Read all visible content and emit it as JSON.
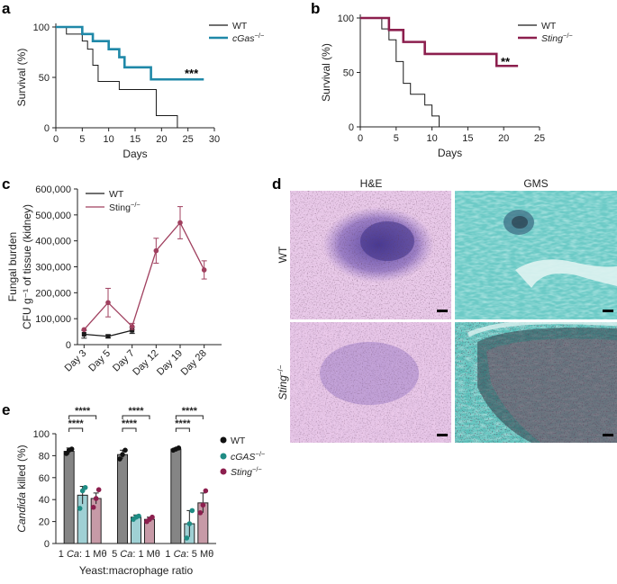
{
  "panels": {
    "a": {
      "letter": "a",
      "legend": [
        {
          "label": "WT",
          "color": "#1a1a1a"
        },
        {
          "label": "cGas",
          "sup": "−/−",
          "color": "#1f88a8"
        }
      ],
      "significance": "***"
    },
    "b": {
      "letter": "b",
      "legend": [
        {
          "label": "WT",
          "color": "#1a1a1a"
        },
        {
          "label": "Sting",
          "sup": "−/−",
          "color": "#8c1f4e"
        }
      ],
      "significance": "**"
    },
    "c": {
      "letter": "c",
      "legend": [
        {
          "label": "WT",
          "color": "#1a1a1a"
        },
        {
          "label": "Sting",
          "sup": "−/−",
          "color": "#a0405f"
        }
      ]
    },
    "d": {
      "letter": "d",
      "col_labels": [
        "H&E",
        "GMS"
      ],
      "row_labels": [
        {
          "label": "WT"
        },
        {
          "label": "Sting",
          "sup": "−/−"
        }
      ]
    },
    "e": {
      "letter": "e",
      "legend": [
        {
          "label": "WT",
          "color": "#1a1a1a"
        },
        {
          "label": "cGAS",
          "sup": "−/−",
          "color": "#1f8c84"
        },
        {
          "label": "Sting",
          "sup": "−/−",
          "color": "#8c1f4e"
        }
      ],
      "significance": "****"
    }
  },
  "chart_data": [
    {
      "panel": "a",
      "type": "line",
      "title": "",
      "xlabel": "Days",
      "ylabel": "Survival (%)",
      "xlim": [
        0,
        30
      ],
      "ylim": [
        0,
        100
      ],
      "xticks": [
        0,
        5,
        10,
        15,
        20,
        25,
        30
      ],
      "yticks": [
        0,
        50,
        100
      ],
      "series": [
        {
          "name": "WT",
          "color": "#1a1a1a",
          "width": 1,
          "x": [
            0,
            2,
            2,
            5,
            5,
            6,
            6,
            7,
            7,
            8,
            8,
            10,
            10,
            12,
            12,
            18,
            18,
            19,
            19,
            23,
            23
          ],
          "y": [
            100,
            100,
            93,
            93,
            86,
            86,
            78,
            78,
            62,
            62,
            46,
            46,
            46,
            46,
            38,
            38,
            38,
            38,
            12,
            12,
            0
          ]
        },
        {
          "name": "cGas−/−",
          "color": "#1f88a8",
          "width": 2.6,
          "x": [
            0,
            5,
            5,
            7,
            7,
            10,
            10,
            12,
            12,
            13,
            13,
            18,
            18,
            28
          ],
          "y": [
            100,
            100,
            93,
            93,
            86,
            86,
            78,
            78,
            70,
            70,
            60,
            60,
            48,
            48
          ]
        }
      ]
    },
    {
      "panel": "b",
      "type": "line",
      "title": "",
      "xlabel": "Days",
      "ylabel": "Survival (%)",
      "xlim": [
        0,
        25
      ],
      "ylim": [
        0,
        100
      ],
      "xticks": [
        0,
        5,
        10,
        15,
        20,
        25
      ],
      "yticks": [
        0,
        50,
        100
      ],
      "series": [
        {
          "name": "WT",
          "color": "#1a1a1a",
          "width": 1,
          "x": [
            0,
            3,
            3,
            4,
            4,
            5,
            5,
            6,
            6,
            7,
            7,
            9,
            9,
            10,
            10,
            11,
            11
          ],
          "y": [
            100,
            100,
            90,
            90,
            80,
            80,
            60,
            60,
            40,
            40,
            30,
            30,
            20,
            20,
            10,
            10,
            0
          ]
        },
        {
          "name": "Sting−/−",
          "color": "#8c1f4e",
          "width": 2.6,
          "x": [
            0,
            4,
            4,
            6,
            6,
            9,
            9,
            19,
            19,
            22
          ],
          "y": [
            100,
            100,
            89,
            89,
            78,
            78,
            67,
            67,
            56,
            56
          ]
        }
      ]
    },
    {
      "panel": "c",
      "type": "line",
      "title": "",
      "xlabel": "",
      "ylabel": "Fungal burden",
      "ylabel2": "CFU g⁻¹ of tissue (kidney)",
      "ylim": [
        0,
        600000
      ],
      "yticks": [
        0,
        100000,
        200000,
        300000,
        400000,
        500000,
        600000
      ],
      "ytick_labels": [
        "0",
        "100,000",
        "200,000",
        "300,000",
        "400,000",
        "500,000",
        "600,000"
      ],
      "categories": [
        "Day 3",
        "Day 5",
        "Day 7",
        "Day 12",
        "Day 19",
        "Day 28"
      ],
      "series": [
        {
          "name": "WT",
          "color": "#1a1a1a",
          "values": [
            40000,
            32000,
            55000,
            null,
            null,
            null
          ],
          "errors": [
            15000,
            6000,
            12000,
            null,
            null,
            null
          ]
        },
        {
          "name": "Sting−/−",
          "color": "#a0405f",
          "values": [
            58000,
            162000,
            70000,
            362000,
            470000,
            288000
          ],
          "errors": [
            0,
            55000,
            12000,
            48000,
            62000,
            35000
          ]
        }
      ]
    },
    {
      "panel": "e",
      "type": "bar",
      "title": "",
      "xlabel": "Yeast:macrophage ratio",
      "ylabel_italic": "Candida",
      "ylabel_rest": " killed (%)",
      "ylim": [
        0,
        100
      ],
      "yticks": [
        0,
        20,
        40,
        60,
        80,
        100
      ],
      "categories": [
        {
          "italic": "Ca",
          "pre": "1 ",
          "post": ": 1 Mθ"
        },
        {
          "italic": "Ca",
          "pre": "5 ",
          "post": ": 1 Mθ"
        },
        {
          "italic": "Ca",
          "pre": "1 ",
          "post": ": 5 Mθ"
        }
      ],
      "series": [
        {
          "name": "WT",
          "color": "#858585",
          "dot": "#111111",
          "values": [
            84,
            81,
            86
          ],
          "errors": [
            3,
            4,
            1
          ],
          "points": [
            [
              82,
              85,
              86
            ],
            [
              77,
              81,
              85
            ],
            [
              85,
              86,
              87
            ]
          ]
        },
        {
          "name": "cGAS−/−",
          "color": "#9fd0d4",
          "dot": "#1f8c84",
          "values": [
            44,
            24,
            18
          ],
          "errors": [
            8,
            2,
            12
          ],
          "points": [
            [
              32,
              48,
              51
            ],
            [
              22,
              24,
              25
            ],
            [
              5,
              18,
              30
            ]
          ]
        },
        {
          "name": "Sting−/−",
          "color": "#c79aa7",
          "dot": "#8c1f4e",
          "values": [
            41,
            22,
            37
          ],
          "errors": [
            5,
            2,
            9
          ],
          "points": [
            [
              33,
              41,
              49
            ],
            [
              20,
              22,
              24
            ],
            [
              28,
              35,
              48
            ]
          ]
        }
      ]
    }
  ]
}
